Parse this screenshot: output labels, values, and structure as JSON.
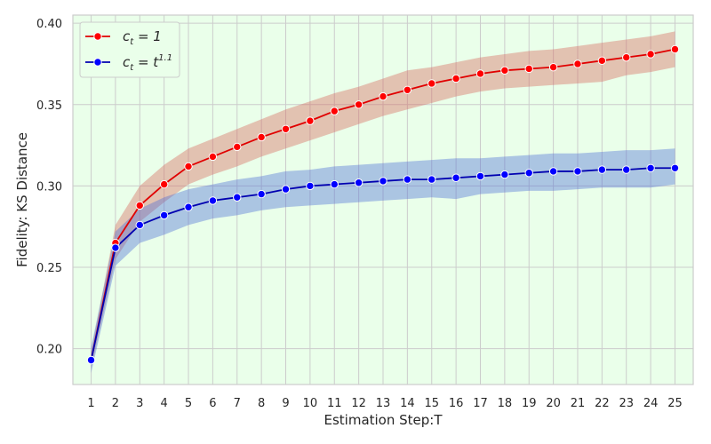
{
  "chart_data": {
    "type": "line",
    "xlabel": "Estimation Step:T",
    "ylabel": "Fidelity: KS Distance",
    "xlim": [
      0.25,
      25.75
    ],
    "ylim": [
      0.178,
      0.405
    ],
    "grid": true,
    "legend_position": "top-left",
    "background_color": "#eaffea",
    "x": [
      1,
      2,
      3,
      4,
      5,
      6,
      7,
      8,
      9,
      10,
      11,
      12,
      13,
      14,
      15,
      16,
      17,
      18,
      19,
      20,
      21,
      22,
      23,
      24,
      25
    ],
    "x_tick_labels": [
      "1",
      "2",
      "3",
      "4",
      "5",
      "6",
      "7",
      "8",
      "9",
      "10",
      "11",
      "12",
      "13",
      "14",
      "15",
      "16",
      "17",
      "18",
      "19",
      "20",
      "21",
      "22",
      "23",
      "24",
      "25"
    ],
    "y_ticks": [
      0.2,
      0.25,
      0.3,
      0.35,
      0.4
    ],
    "y_tick_labels": [
      "0.20",
      "0.25",
      "0.30",
      "0.35",
      "0.40"
    ],
    "series": [
      {
        "name_base": "c",
        "name_sub": "t",
        "name_rhs": " = 1",
        "name_sup": "",
        "color": "#ff0000",
        "line_color": "#e00000",
        "band_color": "#d6675d",
        "values": [
          0.193,
          0.265,
          0.288,
          0.301,
          0.312,
          0.318,
          0.324,
          0.33,
          0.335,
          0.34,
          0.346,
          0.35,
          0.355,
          0.359,
          0.363,
          0.366,
          0.369,
          0.371,
          0.372,
          0.373,
          0.375,
          0.377,
          0.379,
          0.381,
          0.384
        ],
        "lower": [
          0.188,
          0.255,
          0.278,
          0.29,
          0.301,
          0.307,
          0.312,
          0.318,
          0.323,
          0.328,
          0.333,
          0.338,
          0.343,
          0.347,
          0.351,
          0.355,
          0.358,
          0.36,
          0.361,
          0.362,
          0.363,
          0.364,
          0.368,
          0.37,
          0.373
        ],
        "upper": [
          0.198,
          0.276,
          0.3,
          0.313,
          0.323,
          0.329,
          0.335,
          0.341,
          0.347,
          0.352,
          0.357,
          0.361,
          0.366,
          0.371,
          0.373,
          0.376,
          0.379,
          0.381,
          0.383,
          0.384,
          0.386,
          0.388,
          0.39,
          0.392,
          0.395
        ]
      },
      {
        "name_base": "c",
        "name_sub": "t",
        "name_rhs": " = t",
        "name_sup": "1.1",
        "color": "#0000ff",
        "line_color": "#0000b0",
        "band_color": "#4d6fd6",
        "values": [
          0.193,
          0.262,
          0.276,
          0.282,
          0.287,
          0.291,
          0.293,
          0.295,
          0.298,
          0.3,
          0.301,
          0.302,
          0.303,
          0.304,
          0.304,
          0.305,
          0.306,
          0.307,
          0.308,
          0.309,
          0.309,
          0.31,
          0.31,
          0.311,
          0.311
        ],
        "lower": [
          0.185,
          0.251,
          0.265,
          0.27,
          0.276,
          0.28,
          0.282,
          0.285,
          0.287,
          0.288,
          0.289,
          0.29,
          0.291,
          0.292,
          0.293,
          0.292,
          0.295,
          0.296,
          0.297,
          0.297,
          0.298,
          0.299,
          0.299,
          0.299,
          0.301
        ],
        "upper": [
          0.201,
          0.272,
          0.286,
          0.293,
          0.298,
          0.301,
          0.304,
          0.306,
          0.309,
          0.31,
          0.312,
          0.313,
          0.314,
          0.315,
          0.316,
          0.317,
          0.317,
          0.318,
          0.319,
          0.32,
          0.32,
          0.321,
          0.322,
          0.322,
          0.323
        ]
      }
    ]
  }
}
